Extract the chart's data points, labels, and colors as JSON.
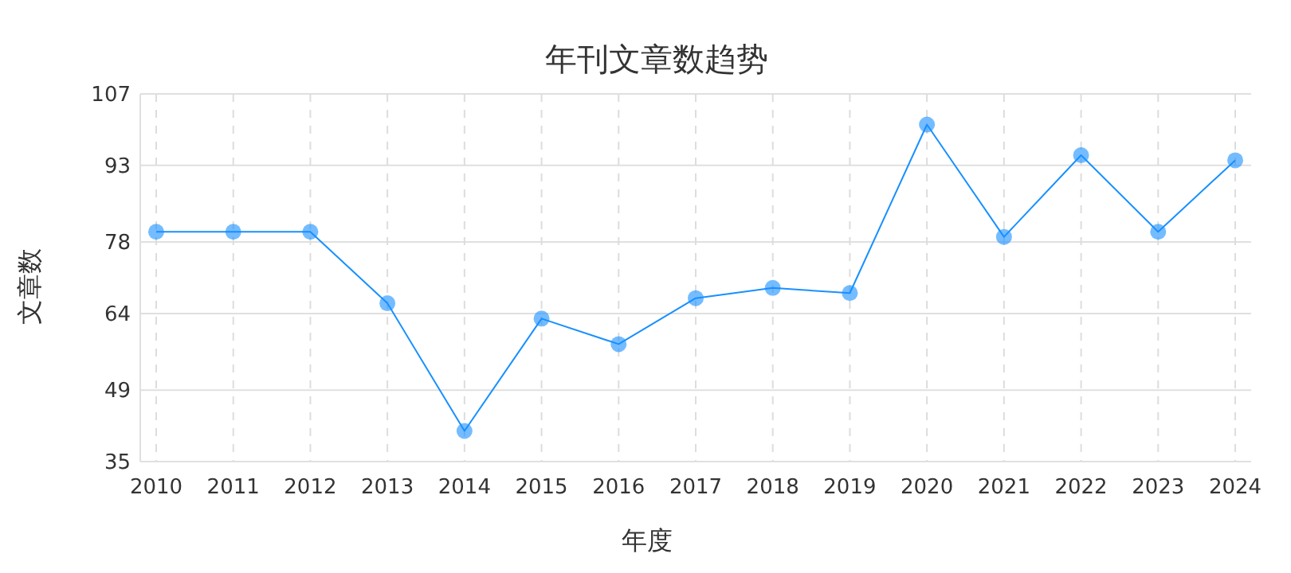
{
  "chart_data": {
    "type": "line",
    "title": "年刊文章数趋势",
    "xlabel": "年度",
    "ylabel": "文章数",
    "categories": [
      "2010",
      "2011",
      "2012",
      "2013",
      "2014",
      "2015",
      "2016",
      "2017",
      "2018",
      "2019",
      "2020",
      "2021",
      "2022",
      "2023",
      "2024"
    ],
    "series": [
      {
        "color": "#1890ff",
        "values": [
          80,
          80,
          80,
          66,
          41,
          63,
          58,
          67,
          69,
          68,
          101,
          79,
          95,
          80,
          94
        ]
      }
    ],
    "ylim": [
      35,
      107
    ],
    "yticks": [
      35,
      49,
      64,
      78,
      93,
      107
    ],
    "grid": true,
    "marker": "circle",
    "line_style": "solid"
  }
}
